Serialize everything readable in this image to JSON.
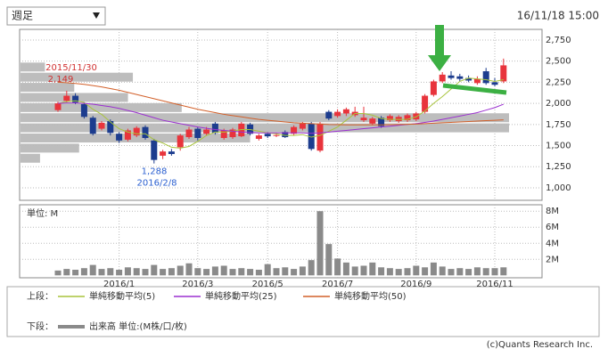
{
  "dropdown": "週足",
  "timestamp": "16/11/18 15:00",
  "copyright": "(c)Quants Research Inc.",
  "legend_groups": {
    "upper": "上段：",
    "lower": "下段："
  },
  "chart_data": [
    {
      "type": "candlestick",
      "ylim": [
        852,
        2876
      ],
      "yticks": [
        {
          "value": 2750,
          "label": "2,750"
        },
        {
          "value": 2500,
          "label": "2,500"
        },
        {
          "value": 2250,
          "label": "2,250"
        },
        {
          "value": 2000,
          "label": "2,000"
        },
        {
          "value": 1750,
          "label": "1,750"
        },
        {
          "value": 1500,
          "label": "1,500"
        },
        {
          "value": 1250,
          "label": "1,250"
        },
        {
          "value": 1000,
          "label": "1,000"
        }
      ],
      "grid": true,
      "up_color": "#e8343c",
      "down_color": "#1c3c8e",
      "categories": [
        null,
        null,
        null,
        null,
        null,
        null,
        null,
        "2016/1",
        null,
        null,
        null,
        null,
        null,
        null,
        null,
        null,
        "2016/3",
        null,
        null,
        null,
        null,
        null,
        null,
        null,
        "2016/5",
        null,
        null,
        null,
        null,
        null,
        null,
        null,
        "2016/7",
        null,
        null,
        null,
        null,
        null,
        null,
        null,
        null,
        "2016/9",
        null,
        null,
        null,
        null,
        null,
        null,
        null,
        null,
        "2016/11",
        null
      ],
      "open": [
        1920,
        2030,
        2090,
        1990,
        1830,
        1700,
        1790,
        1640,
        1570,
        1620,
        1720,
        1560,
        1380,
        1430,
        1480,
        1600,
        1700,
        1640,
        1760,
        1590,
        1600,
        1610,
        1750,
        1580,
        1640,
        1620,
        1660,
        1640,
        1700,
        1760,
        1440,
        1900,
        1850,
        1880,
        1860,
        1800,
        1760,
        1830,
        1800,
        1790,
        1800,
        1810,
        1900,
        2100,
        2260,
        2330,
        2320,
        2300,
        2240,
        2380,
        2250,
        2260
      ],
      "high": [
        2020,
        2149,
        2120,
        2010,
        1850,
        1790,
        1810,
        1660,
        1700,
        1730,
        1740,
        1580,
        1450,
        1460,
        1640,
        1720,
        1720,
        1720,
        1780,
        1700,
        1710,
        1780,
        1770,
        1640,
        1660,
        1650,
        1680,
        1740,
        1780,
        1780,
        1780,
        1920,
        1930,
        1950,
        1960,
        1960,
        1840,
        1850,
        1870,
        1860,
        1880,
        1900,
        2110,
        2280,
        2370,
        2380,
        2350,
        2330,
        2320,
        2420,
        2300,
        2530
      ],
      "low": [
        1900,
        2010,
        1990,
        1820,
        1620,
        1680,
        1620,
        1530,
        1550,
        1600,
        1570,
        1288,
        1340,
        1380,
        1440,
        1580,
        1560,
        1620,
        1630,
        1570,
        1580,
        1600,
        1620,
        1560,
        1590,
        1600,
        1590,
        1620,
        1680,
        1440,
        1420,
        1800,
        1830,
        1850,
        1840,
        1780,
        1740,
        1710,
        1780,
        1770,
        1780,
        1790,
        1880,
        2080,
        2240,
        2280,
        2260,
        2250,
        2220,
        2220,
        2200,
        2240
      ],
      "close": [
        2000,
        2090,
        2010,
        1840,
        1640,
        1770,
        1650,
        1560,
        1680,
        1710,
        1590,
        1330,
        1430,
        1400,
        1620,
        1690,
        1590,
        1690,
        1650,
        1680,
        1690,
        1760,
        1640,
        1620,
        1610,
        1625,
        1600,
        1720,
        1760,
        1460,
        1760,
        1820,
        1900,
        1930,
        1900,
        1830,
        1820,
        1730,
        1850,
        1840,
        1860,
        1880,
        2090,
        2260,
        2340,
        2300,
        2290,
        2270,
        2290,
        2240,
        2220,
        2450
      ],
      "series": [
        {
          "name": "単純移動平均(5)",
          "color": "#a8c43c",
          "values": [
            2000,
            2020,
            2030,
            2010,
            1930,
            1870,
            1780,
            1700,
            1660,
            1640,
            1640,
            1570,
            1530,
            1480,
            1470,
            1490,
            1550,
            1620,
            1660,
            1660,
            1670,
            1690,
            1690,
            1670,
            1650,
            1640,
            1620,
            1620,
            1630,
            1600,
            1620,
            1670,
            1720,
            1800,
            1880,
            1880,
            1860,
            1820,
            1810,
            1810,
            1810,
            1840,
            1910,
            2000,
            2080,
            2170,
            2260,
            2300,
            2290,
            2280,
            2260,
            2280
          ]
        },
        {
          "name": "単純移動平均(25)",
          "color": "#9b30d0",
          "values": [
            2000,
            2005,
            2005,
            2000,
            1990,
            1975,
            1960,
            1940,
            1915,
            1890,
            1860,
            1830,
            1800,
            1780,
            1760,
            1740,
            1720,
            1705,
            1690,
            1680,
            1670,
            1660,
            1655,
            1650,
            1650,
            1650,
            1650,
            1650,
            1650,
            1645,
            1650,
            1660,
            1670,
            1680,
            1690,
            1700,
            1710,
            1720,
            1730,
            1740,
            1750,
            1760,
            1775,
            1790,
            1810,
            1830,
            1850,
            1870,
            1890,
            1920,
            1950,
            1990
          ]
        },
        {
          "name": "単純移動平均(50)",
          "color": "#d2602a",
          "values": [
            2250,
            2245,
            2235,
            2225,
            2210,
            2195,
            2175,
            2155,
            2130,
            2105,
            2080,
            2055,
            2030,
            2005,
            1980,
            1955,
            1930,
            1910,
            1890,
            1870,
            1855,
            1840,
            1825,
            1810,
            1800,
            1790,
            1780,
            1770,
            1765,
            1760,
            1755,
            1750,
            1748,
            1745,
            1745,
            1745,
            1745,
            1745,
            1748,
            1750,
            1752,
            1755,
            1760,
            1765,
            1770,
            1775,
            1780,
            1785,
            1790,
            1795,
            1800,
            1805
          ]
        }
      ],
      "volume_profile": {
        "color": "#9a9a9a",
        "prices": [
          2430,
          2310,
          2190,
          2070,
          1950,
          1830,
          1710,
          1590,
          1470,
          1350
        ],
        "values": [
          5,
          23,
          11,
          22,
          33,
          100,
          100,
          47,
          12,
          4
        ]
      },
      "annotations": [
        {
          "value": 2149,
          "label": "2,149",
          "date": "2015/11/30",
          "color": "#d03030"
        },
        {
          "value": 1288,
          "label": "1,288",
          "date": "2016/2/8",
          "color": "#2a5fd0"
        }
      ]
    },
    {
      "type": "bar",
      "unit_label": "単位: M",
      "name": "出来高 単位:(M株/口/枚)",
      "color": "#8a8a8a",
      "ylim": [
        -0.3,
        8.8
      ],
      "yticks": [
        {
          "value": 8,
          "label": "8M"
        },
        {
          "value": 6,
          "label": "6M"
        },
        {
          "value": 4,
          "label": "4M"
        },
        {
          "value": 2,
          "label": "2M"
        }
      ],
      "grid": true,
      "categories": [
        null,
        null,
        null,
        null,
        null,
        null,
        null,
        "2016/1",
        null,
        null,
        null,
        null,
        null,
        null,
        null,
        null,
        "2016/3",
        null,
        null,
        null,
        null,
        null,
        null,
        null,
        "2016/5",
        null,
        null,
        null,
        null,
        null,
        null,
        null,
        "2016/7",
        null,
        null,
        null,
        null,
        null,
        null,
        null,
        null,
        "2016/9",
        null,
        null,
        null,
        null,
        null,
        null,
        null,
        null,
        "2016/11",
        null
      ],
      "values": [
        0.6,
        0.8,
        0.7,
        0.9,
        1.3,
        0.8,
        0.9,
        0.7,
        1.0,
        0.9,
        0.8,
        1.3,
        0.8,
        0.9,
        1.2,
        1.5,
        0.9,
        0.8,
        1.1,
        1.2,
        0.8,
        0.9,
        0.8,
        0.7,
        1.4,
        0.9,
        1.0,
        0.8,
        1.1,
        1.9,
        8.0,
        3.9,
        2.1,
        1.6,
        1.1,
        1.2,
        1.6,
        1.0,
        0.9,
        0.8,
        0.9,
        1.2,
        1.0,
        1.6,
        1.1,
        0.8,
        0.9,
        0.8,
        1.0,
        0.9,
        0.9,
        1.0
      ]
    }
  ]
}
